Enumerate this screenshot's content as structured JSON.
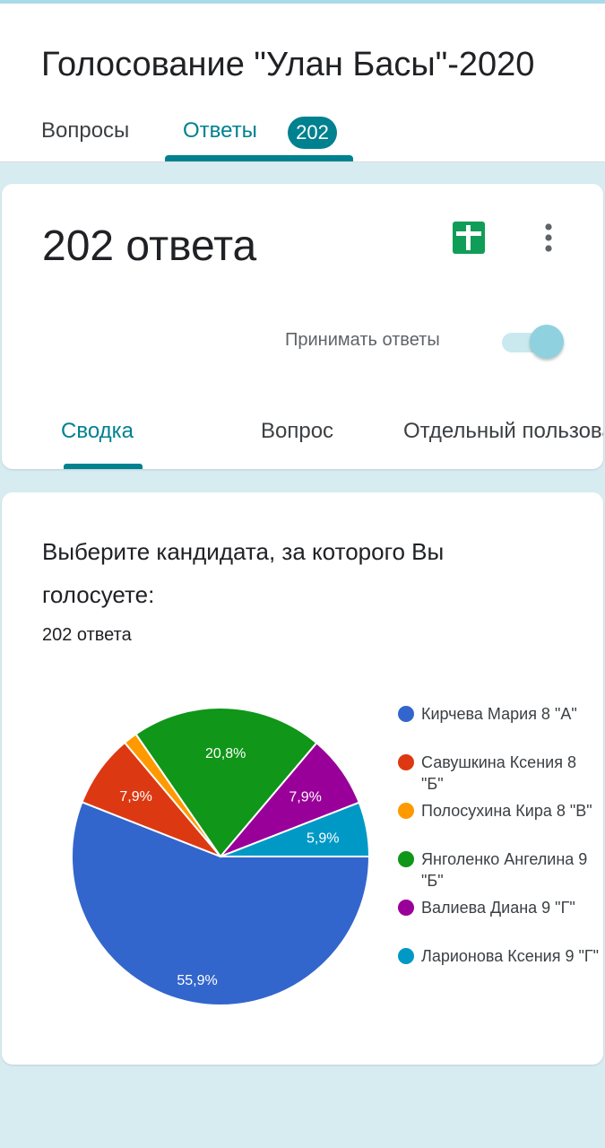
{
  "header": {
    "form_title": "Голосование \"Улан Басы\"-2020",
    "tabs": [
      {
        "label": "Вопросы"
      },
      {
        "label": "Ответы",
        "badge": "202"
      }
    ]
  },
  "summary_card": {
    "response_count": "202 ответа",
    "accept_label": "Принимать ответы",
    "accepting_responses": true,
    "sheets_icon": "google-sheets-icon",
    "more_icon": "more-vert-icon",
    "sub_tabs": [
      {
        "label": "Сводка"
      },
      {
        "label": "Вопрос"
      },
      {
        "label": "Отдельный пользователь"
      }
    ]
  },
  "question_card": {
    "title": "Выберите кандидата, за которого Вы голосуете:",
    "response_count": "202 ответа"
  },
  "chart_data": {
    "type": "pie",
    "labels": [
      "Кирчева Мария 8 \"А\"",
      "Савушкина Ксения 8 \"Б\"",
      "Полосухина Кира 8 \"В\"",
      "Янголенко Ангелина 9 \"Б\"",
      "Валиева Диана 9 \"Г\"",
      "Ларионова Ксения 9 \"Г\""
    ],
    "values": [
      55.9,
      7.9,
      1.5,
      20.8,
      7.9,
      5.9
    ],
    "value_labels": [
      "55,9%",
      "7,9%",
      "",
      "20,8%",
      "7,9%",
      "5,9%"
    ],
    "colors": [
      "#3366cc",
      "#dc3912",
      "#ff9900",
      "#109618",
      "#990099",
      "#0099c6"
    ],
    "legend_position": "right"
  }
}
